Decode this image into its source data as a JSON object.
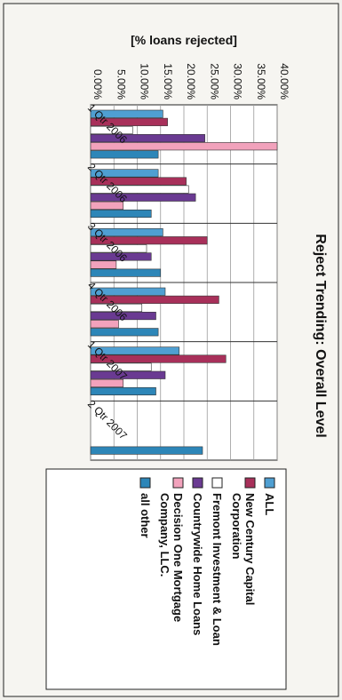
{
  "chart_data": {
    "type": "bar",
    "orientation": "rotated-90-clockwise",
    "title": "Reject Trending: Overall Level",
    "ylabel": "[% loans rejected]",
    "xlabel": "",
    "ylim": [
      0,
      0.4
    ],
    "yticks": [
      "0.00%",
      "5.00%",
      "10.00%",
      "15.00%",
      "20.00%",
      "25.00%",
      "30.00%",
      "35.00%",
      "40.00%"
    ],
    "categories": [
      "1 Qtr 2006",
      "2 Qtr 2006",
      "3 Qtr 2006",
      "4 Qtr 2006",
      "1 Qtr 2007",
      "2 Qtr 2007"
    ],
    "legend_position": "bottom",
    "grid": true,
    "series": [
      {
        "name": "ALL",
        "color": "#4f9fd2",
        "values": [
          0.155,
          0.145,
          0.155,
          0.16,
          0.19,
          null
        ]
      },
      {
        "name": "New Century Capital Corporation",
        "color": "#a8305a",
        "values": [
          0.165,
          0.205,
          0.25,
          0.275,
          0.29,
          null
        ]
      },
      {
        "name": "Fremont Investment & Loan",
        "color": "#ffffff",
        "values": [
          0.09,
          0.21,
          0.12,
          0.11,
          0.13,
          null
        ]
      },
      {
        "name": "Countrywide Home Loans",
        "color": "#6a3a92",
        "values": [
          0.245,
          0.225,
          0.13,
          0.14,
          0.16,
          null
        ]
      },
      {
        "name": "Decision One Mortgage Company, LLC.",
        "color": "#f2a2bc",
        "values": [
          0.4,
          0.07,
          0.055,
          0.06,
          0.07,
          null
        ]
      },
      {
        "name": "all other",
        "color": "#2d86b8",
        "values": [
          0.145,
          0.13,
          0.15,
          0.145,
          0.14,
          0.24
        ]
      }
    ]
  }
}
